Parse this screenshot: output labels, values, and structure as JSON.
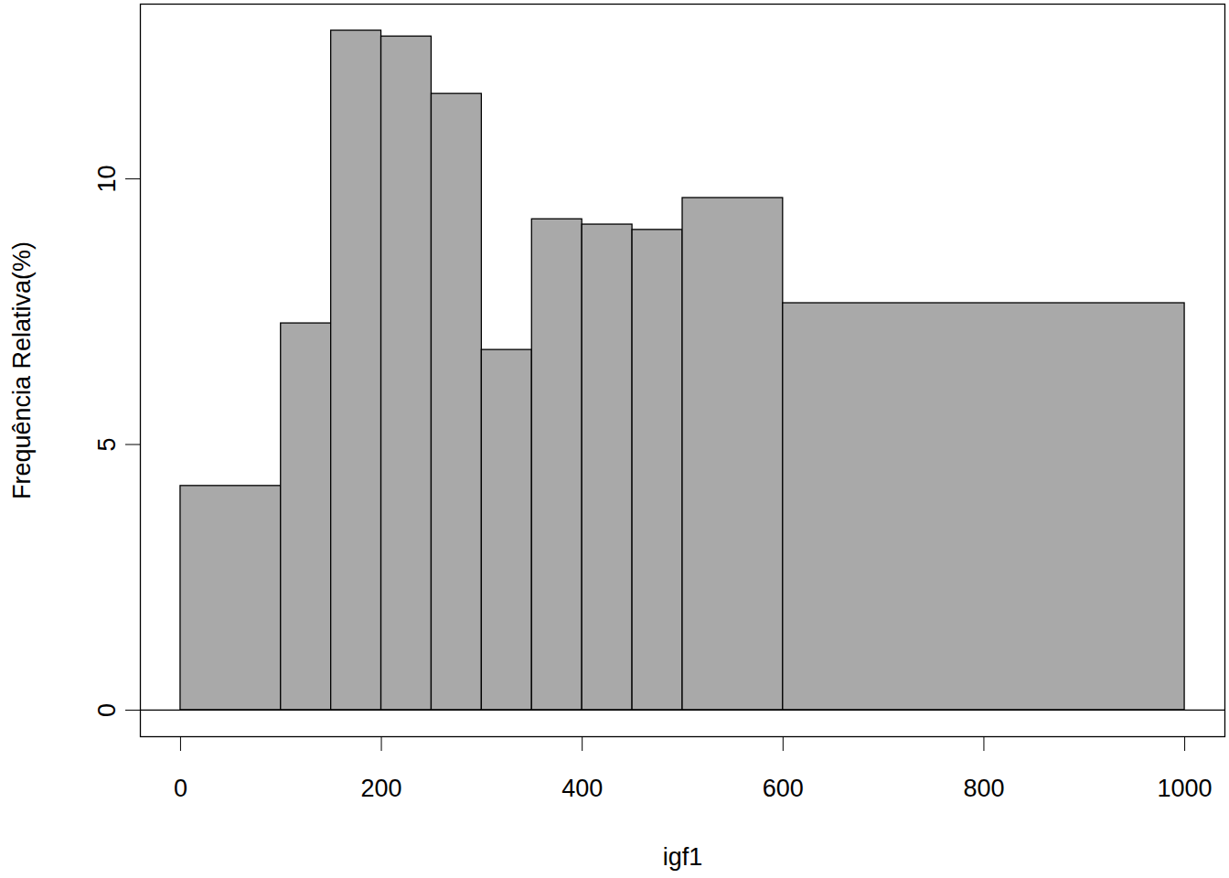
{
  "chart_data": {
    "type": "histogram",
    "x_label": "igf1",
    "y_label": "Frequência Relativa(%)",
    "bins": [
      0,
      100,
      150,
      200,
      250,
      300,
      350,
      400,
      450,
      500,
      600,
      1000
    ],
    "values": [
      4.22,
      7.28,
      12.79,
      12.68,
      11.6,
      6.78,
      9.24,
      9.14,
      9.04,
      9.64,
      7.66
    ],
    "color": "#a9a9a9",
    "xlim": [
      -40,
      1040
    ],
    "xticks": [
      0,
      200,
      400,
      600,
      800,
      1000
    ],
    "ylim": [
      -0.5,
      13.29
    ],
    "yticks": [
      0,
      5,
      10
    ],
    "grid": false
  }
}
